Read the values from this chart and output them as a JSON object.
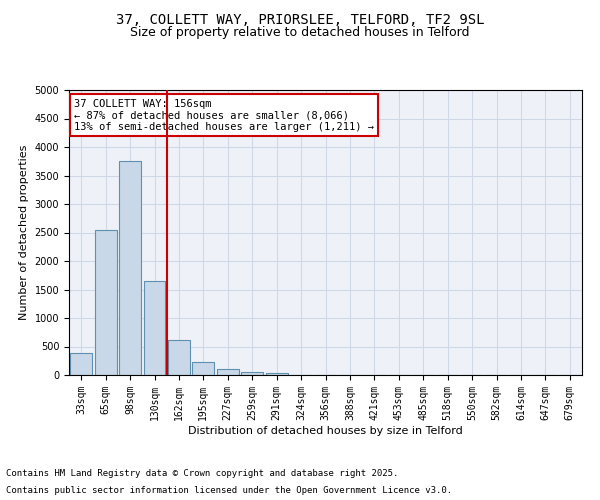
{
  "title_line1": "37, COLLETT WAY, PRIORSLEE, TELFORD, TF2 9SL",
  "title_line2": "Size of property relative to detached houses in Telford",
  "xlabel": "Distribution of detached houses by size in Telford",
  "ylabel": "Number of detached properties",
  "categories": [
    "33sqm",
    "65sqm",
    "98sqm",
    "130sqm",
    "162sqm",
    "195sqm",
    "227sqm",
    "259sqm",
    "291sqm",
    "324sqm",
    "356sqm",
    "388sqm",
    "421sqm",
    "453sqm",
    "485sqm",
    "518sqm",
    "550sqm",
    "582sqm",
    "614sqm",
    "647sqm",
    "679sqm"
  ],
  "values": [
    380,
    2540,
    3760,
    1650,
    620,
    220,
    100,
    55,
    30,
    0,
    0,
    0,
    0,
    0,
    0,
    0,
    0,
    0,
    0,
    0,
    0
  ],
  "bar_color": "#c8d8e8",
  "bar_edge_color": "#6090b0",
  "bar_edge_width": 0.8,
  "ylim": [
    0,
    5000
  ],
  "yticks": [
    0,
    500,
    1000,
    1500,
    2000,
    2500,
    3000,
    3500,
    4000,
    4500,
    5000
  ],
  "red_line_x": 3.5,
  "annotation_text": "37 COLLETT WAY: 156sqm\n← 87% of detached houses are smaller (8,066)\n13% of semi-detached houses are larger (1,211) →",
  "annotation_box_color": "#ffffff",
  "annotation_box_edge": "#cc0000",
  "property_line_color": "#cc0000",
  "grid_color": "#d0d8e8",
  "background_color": "#eef2f8",
  "footer_line1": "Contains HM Land Registry data © Crown copyright and database right 2025.",
  "footer_line2": "Contains public sector information licensed under the Open Government Licence v3.0.",
  "title_fontsize": 10,
  "subtitle_fontsize": 9,
  "axis_label_fontsize": 8,
  "tick_fontsize": 7,
  "annotation_fontsize": 7.5,
  "footer_fontsize": 6.5
}
